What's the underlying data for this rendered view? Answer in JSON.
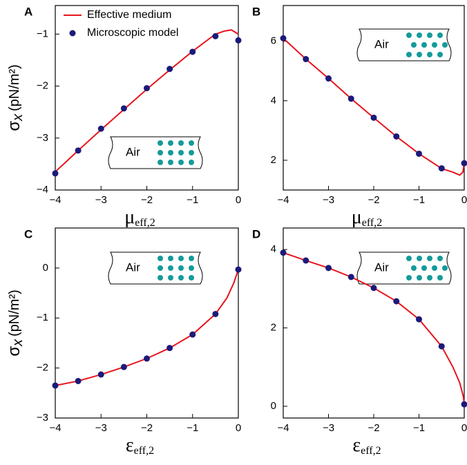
{
  "chart_data": [
    {
      "type": "line",
      "panel_label": "A",
      "ylabel": {
        "symbol": "σ",
        "subscript": "x",
        "unit": "(pN/m²)"
      },
      "xlabel": {
        "symbol": "μ",
        "subscript": "eff,2"
      },
      "xlim": [
        -4,
        0
      ],
      "xticks": [
        -4,
        -3,
        -2,
        -1,
        0
      ],
      "ylim": [
        -4,
        -0.45
      ],
      "yticks": [
        -4,
        -3,
        -2,
        -1
      ],
      "inset_label": "Air",
      "legend": "upper left",
      "series": [
        {
          "name": "Effective medium",
          "kind": "line",
          "color": "#e8141c",
          "x": [
            -4,
            -3.5,
            -3,
            -2.5,
            -2,
            -1.5,
            -1,
            -0.5,
            -0.3,
            -0.15,
            0
          ],
          "values": [
            -3.65,
            -3.24,
            -2.84,
            -2.45,
            -2.06,
            -1.69,
            -1.33,
            -1.0,
            -0.94,
            -0.92,
            -1.0
          ]
        },
        {
          "name": "Microscopic model",
          "kind": "points",
          "color": "#1a1a7a",
          "x": [
            -4,
            -3.5,
            -3,
            -2.5,
            -2,
            -1.5,
            -1,
            -0.5,
            0
          ],
          "values": [
            -3.68,
            -3.24,
            -2.82,
            -2.43,
            -2.04,
            -1.67,
            -1.34,
            -1.04,
            -1.12
          ]
        }
      ]
    },
    {
      "type": "line",
      "panel_label": "B",
      "xlabel": {
        "symbol": "μ",
        "subscript": "eff,2"
      },
      "xlim": [
        -4,
        0
      ],
      "xticks": [
        -4,
        -3,
        -2,
        -1,
        0
      ],
      "ylim": [
        1,
        7.2
      ],
      "yticks": [
        2,
        4,
        6
      ],
      "inset_label": "Air",
      "series": [
        {
          "kind": "line",
          "color": "#e8141c",
          "x": [
            -4,
            -3.5,
            -3,
            -2.5,
            -2,
            -1.5,
            -1,
            -0.5,
            -0.25,
            -0.1,
            -0.03,
            0
          ],
          "values": [
            6.1,
            5.4,
            4.75,
            4.07,
            3.43,
            2.8,
            2.22,
            1.72,
            1.6,
            1.5,
            1.6,
            1.9
          ]
        },
        {
          "kind": "points",
          "color": "#1a1a7a",
          "x": [
            -4,
            -3.5,
            -3,
            -2.5,
            -2,
            -1.5,
            -1,
            -0.5,
            0
          ],
          "values": [
            6.1,
            5.4,
            4.75,
            4.07,
            3.43,
            2.8,
            2.22,
            1.73,
            1.9
          ]
        }
      ]
    },
    {
      "type": "line",
      "panel_label": "C",
      "ylabel": {
        "symbol": "σ",
        "subscript": "x",
        "unit": "(pN/m²)"
      },
      "xlabel": {
        "symbol": "ε",
        "subscript": "eff,2"
      },
      "xlim": [
        -4,
        0
      ],
      "xticks": [
        -4,
        -3,
        -2,
        -1,
        0
      ],
      "ylim": [
        -3,
        0.8
      ],
      "yticks": [
        -3,
        -2,
        -1,
        0
      ],
      "inset_label": "Air",
      "series": [
        {
          "kind": "line",
          "color": "#e8141c",
          "x": [
            -4,
            -3.5,
            -3,
            -2.5,
            -2,
            -1.5,
            -1,
            -0.5,
            -0.25,
            -0.1,
            0
          ],
          "values": [
            -2.35,
            -2.26,
            -2.13,
            -1.98,
            -1.81,
            -1.6,
            -1.33,
            -0.92,
            -0.6,
            -0.3,
            -0.03
          ]
        },
        {
          "kind": "points",
          "color": "#1a1a7a",
          "x": [
            -4,
            -3.5,
            -3,
            -2.5,
            -2,
            -1.5,
            -1,
            -0.5,
            0
          ],
          "values": [
            -2.35,
            -2.26,
            -2.13,
            -1.98,
            -1.81,
            -1.6,
            -1.33,
            -0.92,
            -0.03
          ]
        }
      ]
    },
    {
      "type": "line",
      "panel_label": "D",
      "xlabel": {
        "symbol": "ε",
        "subscript": "eff,2"
      },
      "xlim": [
        -4,
        0
      ],
      "xticks": [
        -4,
        -3,
        -2,
        -1,
        0
      ],
      "ylim": [
        -0.3,
        4.55
      ],
      "yticks": [
        0,
        2,
        4
      ],
      "inset_label": "Air",
      "series": [
        {
          "kind": "line",
          "color": "#e8141c",
          "x": [
            -4,
            -3.5,
            -3,
            -2.5,
            -2,
            -1.5,
            -1,
            -0.5,
            -0.25,
            -0.1,
            -0.02,
            0
          ],
          "values": [
            3.92,
            3.72,
            3.53,
            3.3,
            3.02,
            2.68,
            2.22,
            1.53,
            1.0,
            0.6,
            0.25,
            0.05
          ]
        },
        {
          "kind": "points",
          "color": "#1a1a7a",
          "x": [
            -4,
            -3.5,
            -3,
            -2.5,
            -2,
            -1.5,
            -1,
            -0.5,
            0
          ],
          "values": [
            3.92,
            3.72,
            3.53,
            3.3,
            3.02,
            2.68,
            2.22,
            1.53,
            0.05
          ]
        }
      ]
    }
  ]
}
